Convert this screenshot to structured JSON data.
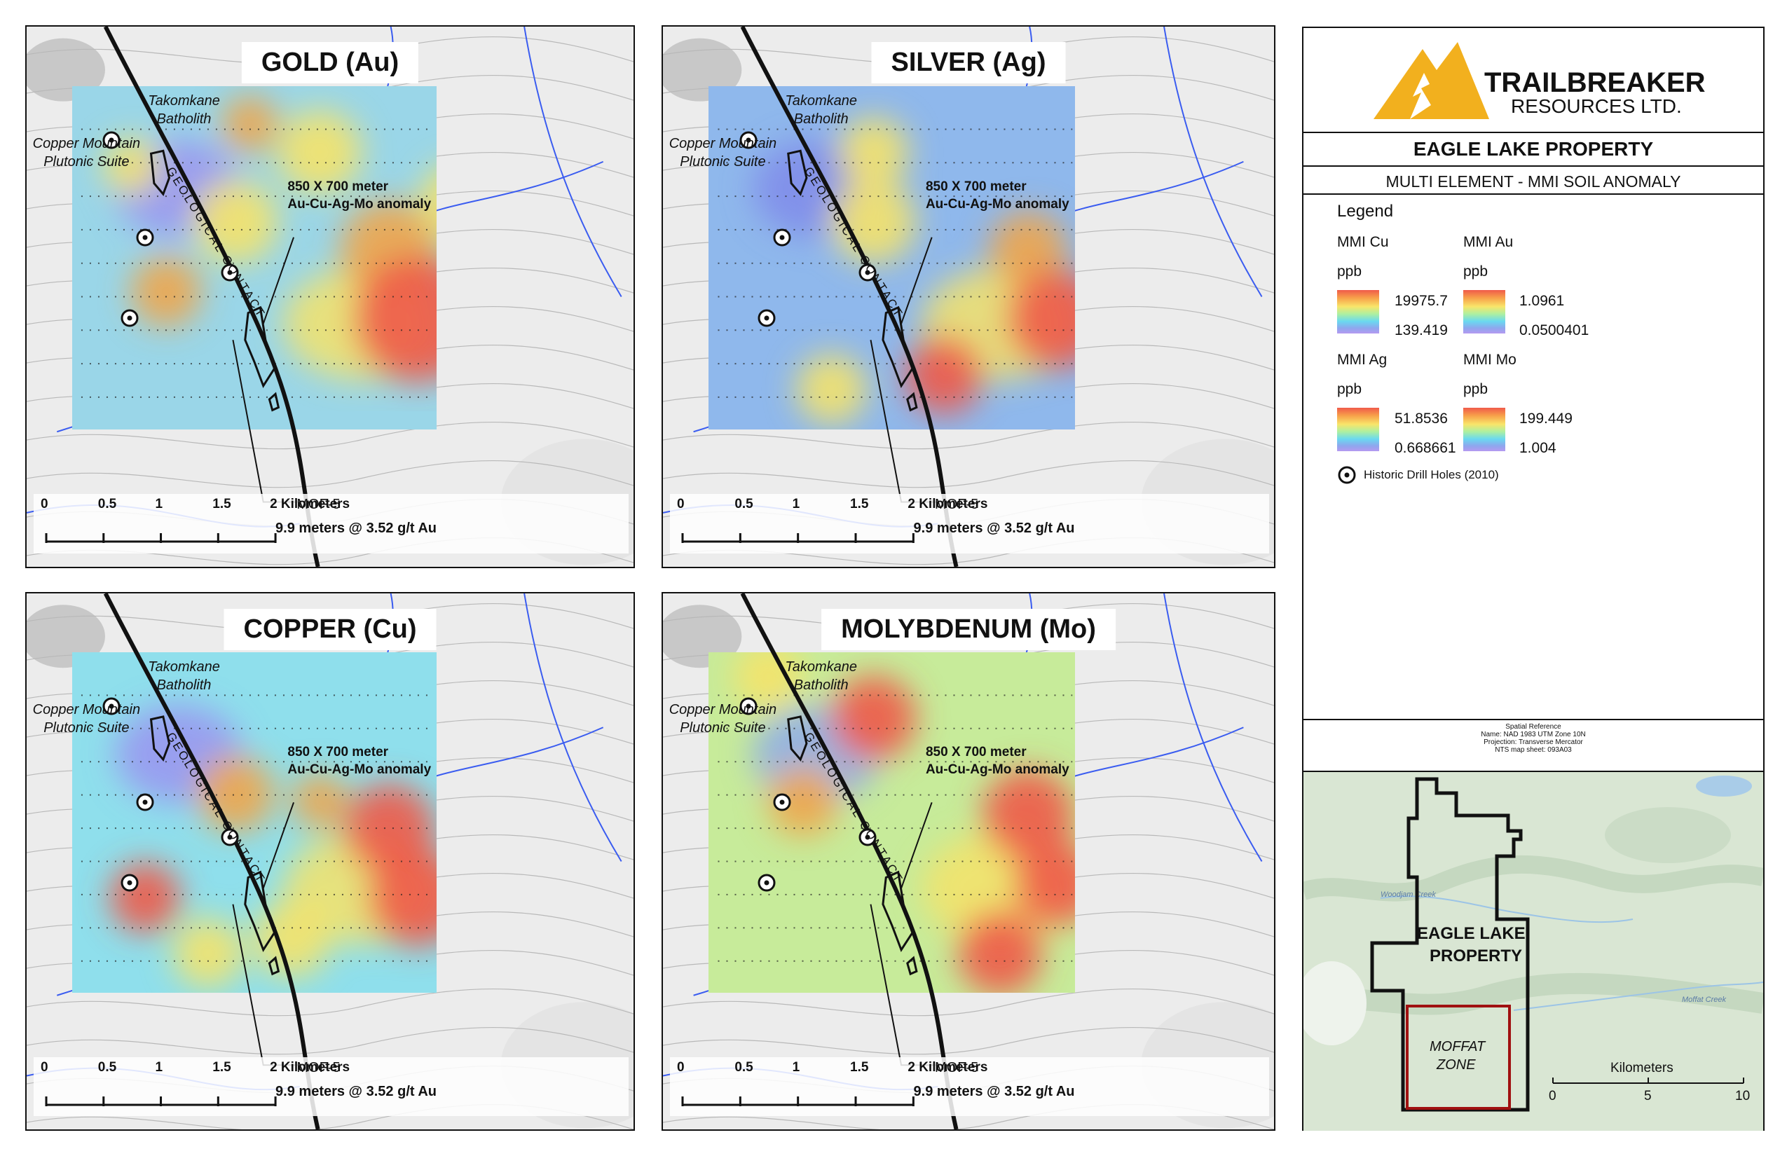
{
  "panels": [
    {
      "title": "GOLD (Au)",
      "batholith": "Takomkane\nBatholith",
      "suite": "Copper Mountain\nPlutonic Suite",
      "anomaly": "850 X 700 meter\nAu-Cu-Ag-Mo anomaly",
      "contact": "GEOLOGICAL CONTACT",
      "drill": "MOF-5",
      "drill_result": "9.9 meters @ 3.52 g/t Au",
      "scale_ticks": [
        "0",
        "0.5",
        "1",
        "1.5",
        "2 Kilometers"
      ]
    },
    {
      "title": "SILVER (Ag)",
      "batholith": "Takomkane\nBatholith",
      "suite": "Copper Mountain\nPlutonic Suite",
      "anomaly": "850 X 700 meter\nAu-Cu-Ag-Mo anomaly",
      "contact": "GEOLOGICAL CONTACT",
      "drill": "MOF-5",
      "drill_result": "9.9 meters @ 3.52 g/t Au",
      "scale_ticks": [
        "0",
        "0.5",
        "1",
        "1.5",
        "2 Kilometers"
      ]
    },
    {
      "title": "COPPER (Cu)",
      "batholith": "Takomkane\nBatholith",
      "suite": "Copper Mountain\nPlutonic Suite",
      "anomaly": "850 X 700 meter\nAu-Cu-Ag-Mo anomaly",
      "contact": "GEOLOGICAL CONTACT",
      "drill": "MOF-5",
      "drill_result": "9.9 meters @ 3.52 g/t Au",
      "scale_ticks": [
        "0",
        "0.5",
        "1",
        "1.5",
        "2 Kilometers"
      ]
    },
    {
      "title": "MOLYBDENUM (Mo)",
      "batholith": "Takomkane\nBatholith",
      "suite": "Copper Mountain\nPlutonic Suite",
      "anomaly": "850 X 700 meter\nAu-Cu-Ag-Mo anomaly",
      "contact": "GEOLOGICAL CONTACT",
      "drill": "MOF-5",
      "drill_result": "9.9 meters @ 3.52 g/t Au",
      "scale_ticks": [
        "0",
        "0.5",
        "1",
        "1.5",
        "2 Kilometers"
      ]
    }
  ],
  "legend": {
    "company_name": "TRAILBREAKER",
    "company_sub": "RESOURCES LTD.",
    "property": "EAGLE LAKE PROPERTY",
    "subtitle": "MULTI ELEMENT - MMI SOIL ANOMALY",
    "legend_title": "Legend",
    "unit": "ppb",
    "ramps": [
      {
        "label": "MMI Cu",
        "high": "19975.7",
        "low": "139.419"
      },
      {
        "label": "MMI Au",
        "high": "1.0961",
        "low": "0.0500401"
      },
      {
        "label": "MMI Ag",
        "high": "51.8536",
        "low": "0.668661"
      },
      {
        "label": "MMI Mo",
        "high": "199.449",
        "low": "1.004"
      }
    ],
    "drill_holes": "Historic Drill Holes (2010)",
    "spatial_reference": [
      "Spatial Reference",
      "Name: NAD 1983 UTM Zone 10N",
      "Projection: Transverse Mercator",
      "NTS map sheet: 093A03"
    ],
    "colors": {
      "logo": "#f2b01e",
      "ramp_high": "#f05a4a",
      "ramp_low": "#b59af0"
    }
  },
  "location_map": {
    "property_label": "EAGLE LAKE\nPROPERTY",
    "zone_label": "MOFFAT\nZONE",
    "creek_1": "Woodjam Creek",
    "creek_2": "Moffat Creek",
    "scale_title": "Kilometers",
    "scale_ticks": [
      "0",
      "5",
      "10"
    ]
  }
}
